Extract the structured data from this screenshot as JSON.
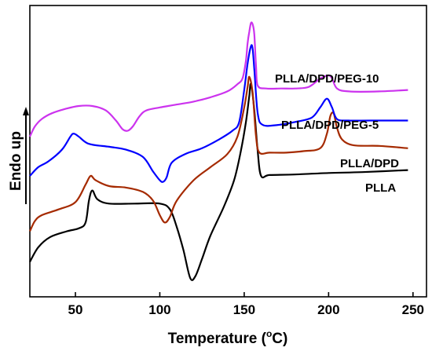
{
  "chart_data": {
    "type": "line",
    "title": "",
    "xlabel": "Temperature (",
    "xlabel_sup": "o",
    "xlabel_unit": "C)",
    "ylabel": "Endo up",
    "xlim": [
      23,
      258
    ],
    "x_ticks": [
      "50",
      "100",
      "150",
      "200",
      "250"
    ],
    "grid": false,
    "legend": "none",
    "series": [
      {
        "name": "PLLA",
        "color": "#000000",
        "points": [
          [
            23,
            0.88
          ],
          [
            28,
            0.83
          ],
          [
            35,
            0.795
          ],
          [
            45,
            0.775
          ],
          [
            52,
            0.765
          ],
          [
            56,
            0.745
          ],
          [
            58,
            0.67
          ],
          [
            60,
            0.635
          ],
          [
            63,
            0.665
          ],
          [
            70,
            0.68
          ],
          [
            85,
            0.68
          ],
          [
            100,
            0.68
          ],
          [
            106,
            0.7
          ],
          [
            110,
            0.76
          ],
          [
            114,
            0.84
          ],
          [
            118,
            0.935
          ],
          [
            121,
            0.93
          ],
          [
            125,
            0.87
          ],
          [
            130,
            0.79
          ],
          [
            138,
            0.69
          ],
          [
            144,
            0.6
          ],
          [
            148,
            0.5
          ],
          [
            151,
            0.4
          ],
          [
            153,
            0.31
          ],
          [
            154,
            0.27
          ],
          [
            156,
            0.36
          ],
          [
            158,
            0.5
          ],
          [
            160,
            0.585
          ],
          [
            165,
            0.582
          ],
          [
            180,
            0.58
          ],
          [
            200,
            0.575
          ],
          [
            220,
            0.572
          ],
          [
            247,
            0.565
          ]
        ]
      },
      {
        "name": "PLLA/DPD",
        "color": "#a52a00",
        "points": [
          [
            23,
            0.775
          ],
          [
            26,
            0.74
          ],
          [
            30,
            0.72
          ],
          [
            40,
            0.7
          ],
          [
            50,
            0.675
          ],
          [
            56,
            0.615
          ],
          [
            59,
            0.585
          ],
          [
            62,
            0.6
          ],
          [
            70,
            0.62
          ],
          [
            80,
            0.625
          ],
          [
            90,
            0.64
          ],
          [
            96,
            0.67
          ],
          [
            100,
            0.72
          ],
          [
            103,
            0.745
          ],
          [
            106,
            0.725
          ],
          [
            110,
            0.67
          ],
          [
            120,
            0.6
          ],
          [
            130,
            0.555
          ],
          [
            140,
            0.51
          ],
          [
            146,
            0.45
          ],
          [
            150,
            0.35
          ],
          [
            152,
            0.28
          ],
          [
            153,
            0.245
          ],
          [
            155,
            0.3
          ],
          [
            157,
            0.45
          ],
          [
            159,
            0.505
          ],
          [
            165,
            0.505
          ],
          [
            175,
            0.505
          ],
          [
            185,
            0.5
          ],
          [
            195,
            0.49
          ],
          [
            199,
            0.44
          ],
          [
            201,
            0.38
          ],
          [
            203,
            0.37
          ],
          [
            205,
            0.42
          ],
          [
            208,
            0.46
          ],
          [
            215,
            0.48
          ],
          [
            230,
            0.482
          ],
          [
            247,
            0.49
          ]
        ]
      },
      {
        "name": "PLLA/DPD/PEG-5",
        "color": "#0000ff",
        "points": [
          [
            23,
            0.585
          ],
          [
            28,
            0.555
          ],
          [
            34,
            0.535
          ],
          [
            42,
            0.495
          ],
          [
            47,
            0.45
          ],
          [
            49,
            0.44
          ],
          [
            52,
            0.45
          ],
          [
            58,
            0.475
          ],
          [
            70,
            0.485
          ],
          [
            80,
            0.495
          ],
          [
            90,
            0.52
          ],
          [
            96,
            0.57
          ],
          [
            100,
            0.6
          ],
          [
            102,
            0.605
          ],
          [
            104,
            0.59
          ],
          [
            107,
            0.54
          ],
          [
            115,
            0.51
          ],
          [
            125,
            0.49
          ],
          [
            135,
            0.46
          ],
          [
            143,
            0.43
          ],
          [
            147,
            0.4
          ],
          [
            150,
            0.29
          ],
          [
            152,
            0.2
          ],
          [
            154,
            0.14
          ],
          [
            155,
            0.15
          ],
          [
            156,
            0.22
          ],
          [
            158,
            0.37
          ],
          [
            161,
            0.41
          ],
          [
            170,
            0.41
          ],
          [
            180,
            0.4
          ],
          [
            190,
            0.385
          ],
          [
            195,
            0.35
          ],
          [
            199,
            0.32
          ],
          [
            202,
            0.35
          ],
          [
            205,
            0.39
          ],
          [
            212,
            0.395
          ],
          [
            225,
            0.395
          ],
          [
            247,
            0.395
          ]
        ]
      },
      {
        "name": "PLLA/DPD/PEG-10",
        "color": "#cc33ee",
        "points": [
          [
            23,
            0.45
          ],
          [
            26,
            0.415
          ],
          [
            30,
            0.39
          ],
          [
            36,
            0.37
          ],
          [
            44,
            0.355
          ],
          [
            52,
            0.345
          ],
          [
            60,
            0.345
          ],
          [
            68,
            0.36
          ],
          [
            74,
            0.395
          ],
          [
            78,
            0.425
          ],
          [
            81,
            0.43
          ],
          [
            84,
            0.415
          ],
          [
            88,
            0.38
          ],
          [
            92,
            0.36
          ],
          [
            100,
            0.35
          ],
          [
            110,
            0.34
          ],
          [
            120,
            0.33
          ],
          [
            130,
            0.315
          ],
          [
            140,
            0.295
          ],
          [
            146,
            0.27
          ],
          [
            149,
            0.25
          ],
          [
            151,
            0.19
          ],
          [
            152,
            0.13
          ],
          [
            153,
            0.09
          ],
          [
            154,
            0.06
          ],
          [
            155,
            0.065
          ],
          [
            156,
            0.1
          ],
          [
            157,
            0.21
          ],
          [
            158,
            0.275
          ],
          [
            163,
            0.285
          ],
          [
            172,
            0.285
          ],
          [
            180,
            0.285
          ],
          [
            188,
            0.28
          ],
          [
            194,
            0.255
          ],
          [
            197,
            0.245
          ],
          [
            200,
            0.24
          ],
          [
            202,
            0.25
          ],
          [
            205,
            0.285
          ],
          [
            212,
            0.295
          ],
          [
            230,
            0.295
          ],
          [
            247,
            0.29
          ]
        ]
      }
    ]
  }
}
